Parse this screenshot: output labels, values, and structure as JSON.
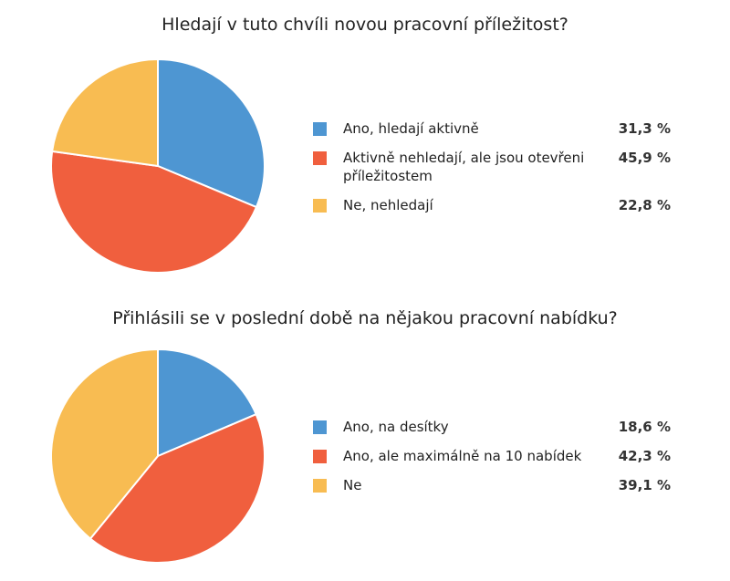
{
  "chart_data": [
    {
      "type": "pie",
      "title": "Hledají v tuto chvíli novou pracovní příležitost?",
      "slices": [
        {
          "label": "Ano, hledají aktivně",
          "value": 31.3,
          "value_label": "31,3 %",
          "color": "#4e96d2"
        },
        {
          "label": "Aktivně nehledají, ale jsou otevřeni příležitostem",
          "value": 45.9,
          "value_label": "45,9 %",
          "color": "#f05f3e"
        },
        {
          "label": "Ne, nehledají",
          "value": 22.8,
          "value_label": "22,8 %",
          "color": "#f8bc52"
        }
      ],
      "legend_position": "right"
    },
    {
      "type": "pie",
      "title": "Přihlásili se v poslední době na nějakou pracovní nabídku?",
      "slices": [
        {
          "label": "Ano, na desítky",
          "value": 18.6,
          "value_label": "18,6 %",
          "color": "#4e96d2"
        },
        {
          "label": "Ano, ale maximálně na 10 nabídek",
          "value": 42.3,
          "value_label": "42,3 %",
          "color": "#f05f3e"
        },
        {
          "label": "Ne",
          "value": 39.1,
          "value_label": "39,1 %",
          "color": "#f8bc52"
        }
      ],
      "legend_position": "right"
    }
  ]
}
